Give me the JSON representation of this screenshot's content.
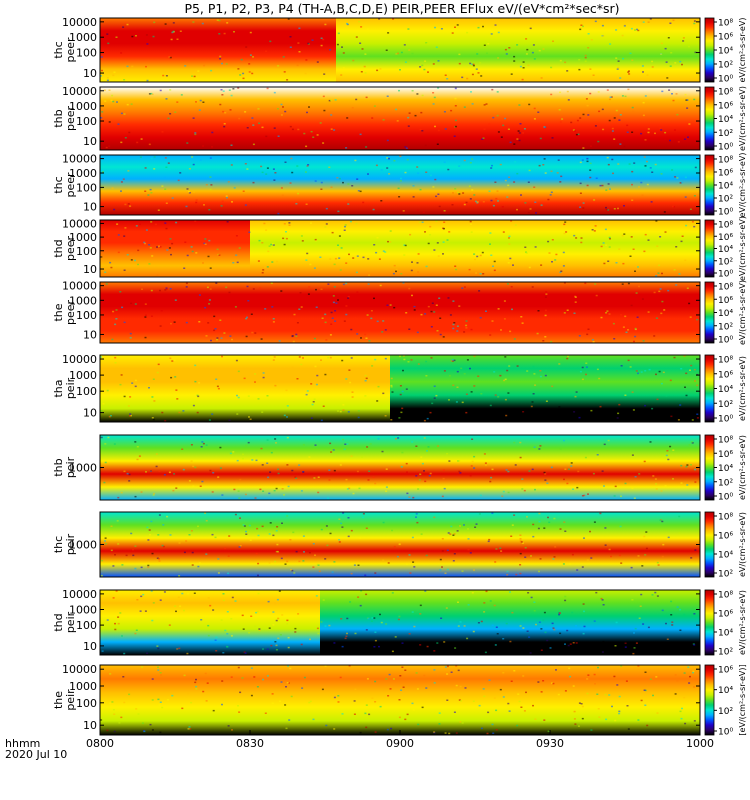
{
  "title": "P5, P1, P2, P3, P4 (TH-A,B,C,D,E) PEIR,PEER EFlux eV/(eV*cm²*sec*sr)",
  "time_axis": {
    "label_line1": "hhmm",
    "label_line2": "2020 Jul 10",
    "ticks": [
      "0800",
      "0830",
      "0900",
      "0930",
      "1000"
    ]
  },
  "colors": {
    "colormap": [
      "#000000",
      "#2b0066",
      "#1f00c8",
      "#0050ff",
      "#00b0ff",
      "#00e6d2",
      "#00d070",
      "#60e020",
      "#c8f000",
      "#fff000",
      "#ffc000",
      "#ff7a00",
      "#ff2a00",
      "#e00000",
      "#b00000"
    ]
  },
  "chart_data": [
    {
      "type": "heatmap",
      "probe": "thc",
      "product": "peer",
      "ylabel_1": "thc",
      "ylabel_2": "peer",
      "yscale": "log",
      "y_ticks": [
        "10000",
        "1000",
        "100",
        "10"
      ],
      "cbar_ticks": [
        "10⁸",
        "10⁶",
        "10⁴",
        "10²",
        "10⁰"
      ],
      "cbar_label": "eV/(cm²-s-sr-eV)"
    },
    {
      "type": "heatmap",
      "probe": "thb",
      "product": "peer",
      "ylabel_1": "thb",
      "ylabel_2": "peer",
      "yscale": "log",
      "y_ticks": [
        "10000",
        "1000",
        "100",
        "10"
      ],
      "cbar_ticks": [
        "10⁸",
        "10⁶",
        "10⁴",
        "10²",
        "10⁰"
      ],
      "cbar_label": "eV/(cm²-s-sr-eV)"
    },
    {
      "type": "heatmap",
      "probe": "thc",
      "product": "peer",
      "ylabel_1": "thc",
      "ylabel_2": "peer",
      "yscale": "log",
      "y_ticks": [
        "10000",
        "1000",
        "100",
        "10"
      ],
      "cbar_ticks": [
        "10⁸",
        "10⁶",
        "10⁴",
        "10²",
        "10⁰"
      ],
      "cbar_label": "eV/(cm²-s-sr-eV)"
    },
    {
      "type": "heatmap",
      "probe": "thd",
      "product": "peer",
      "ylabel_1": "thd",
      "ylabel_2": "peer",
      "yscale": "log",
      "y_ticks": [
        "10000",
        "1000",
        "100",
        "10"
      ],
      "cbar_ticks": [
        "10⁸",
        "10⁶",
        "10⁴",
        "10²",
        "10⁰"
      ],
      "cbar_label": "eV/(cm²-s-sr-eV)"
    },
    {
      "type": "heatmap",
      "probe": "the",
      "product": "peer",
      "ylabel_1": "the",
      "ylabel_2": "peer",
      "yscale": "log",
      "y_ticks": [
        "10000",
        "1000",
        "100",
        "10"
      ],
      "cbar_ticks": [
        "10⁸",
        "10⁶",
        "10⁴",
        "10²",
        "10⁰"
      ],
      "cbar_label": "eV/(cm²-s-sr-eV)"
    },
    {
      "type": "heatmap",
      "probe": "tha",
      "product": "peir",
      "ylabel_1": "tha",
      "ylabel_2": "peir",
      "yscale": "log",
      "y_ticks": [
        "10000",
        "1000",
        "100",
        "10"
      ],
      "cbar_ticks": [
        "10⁸",
        "10⁶",
        "10⁴",
        "10²",
        "10⁰"
      ],
      "cbar_label": "eV/(cm²-s-sr-eV)"
    },
    {
      "type": "heatmap",
      "probe": "thb",
      "product": "peir",
      "ylabel_1": "thb",
      "ylabel_2": "peir",
      "yscale": "log",
      "y_ticks": [
        "1000"
      ],
      "cbar_ticks": [
        "10⁸",
        "10⁶",
        "10⁴",
        "10²",
        "10⁰"
      ],
      "cbar_label": "eV/(cm²-s-sr-eV)"
    },
    {
      "type": "heatmap",
      "probe": "thc",
      "product": "peir",
      "ylabel_1": "thc",
      "ylabel_2": "peir",
      "yscale": "log",
      "y_ticks": [
        "1000"
      ],
      "cbar_ticks": [
        "10⁸",
        "10⁶",
        "10⁴",
        "10²"
      ],
      "cbar_label": "eV/(cm²-s-sr-eV)"
    },
    {
      "type": "heatmap",
      "probe": "thd",
      "product": "peir",
      "ylabel_1": "thd",
      "ylabel_2": "peir",
      "yscale": "log",
      "y_ticks": [
        "10000",
        "1000",
        "100",
        "10"
      ],
      "cbar_ticks": [
        "10⁸",
        "10⁶",
        "10⁴",
        "10²"
      ],
      "cbar_label": "eV/(cm²-s-sr-eV)"
    },
    {
      "type": "heatmap",
      "probe": "the",
      "product": "peir",
      "ylabel_1": "the",
      "ylabel_2": "peir",
      "yscale": "log",
      "y_ticks": [
        "10000",
        "1000",
        "100",
        "10"
      ],
      "cbar_ticks": [
        "10⁶",
        "10⁴",
        "10²",
        "10⁰"
      ],
      "cbar_label": "[eV/(cm²-s-sr-eV)]"
    }
  ]
}
